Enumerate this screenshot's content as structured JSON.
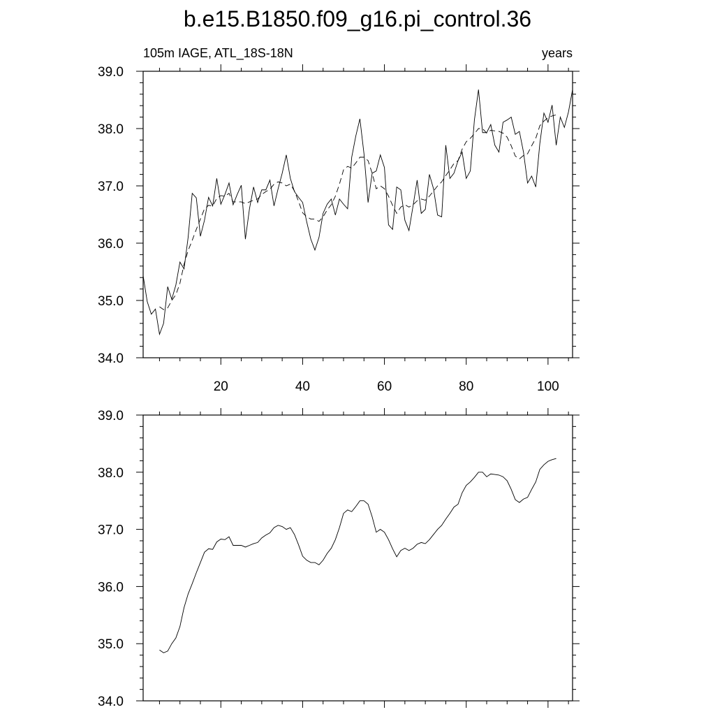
{
  "title": "b.e15.B1850.f09_g16.pi_control.36",
  "chart_data": [
    {
      "type": "line",
      "left_string": "105m IAGE, ATL_18S-18N",
      "right_string": "years",
      "xlim": [
        1,
        106
      ],
      "ylim": [
        34,
        39
      ],
      "xticks": [
        20,
        40,
        60,
        80,
        100
      ],
      "xtick_labels": true,
      "yticks": [
        {
          "value": 34,
          "label": "34.0"
        },
        {
          "value": 35,
          "label": "35.0"
        },
        {
          "value": 36,
          "label": "36.0"
        },
        {
          "value": 37,
          "label": "37.0"
        },
        {
          "value": 38,
          "label": "38.0"
        },
        {
          "value": 39,
          "label": "39.0"
        }
      ],
      "series": [
        {
          "color": "#000000",
          "dash": false,
          "x": [
            1,
            2,
            3,
            4,
            5,
            6,
            7,
            8,
            9,
            10,
            11,
            12,
            13,
            14,
            15,
            16,
            17,
            18,
            19,
            20,
            21,
            22,
            23,
            24,
            25,
            26,
            27,
            28,
            29,
            30,
            31,
            32,
            33,
            34,
            35,
            36,
            37,
            38,
            39,
            40,
            41,
            42,
            43,
            44,
            45,
            46,
            47,
            48,
            49,
            50,
            51,
            52,
            53,
            54,
            55,
            56,
            57,
            58,
            59,
            60,
            61,
            62,
            63,
            64,
            65,
            66,
            67,
            68,
            69,
            70,
            71,
            72,
            73,
            74,
            75,
            76,
            77,
            78,
            79,
            80,
            81,
            82,
            83,
            84,
            85,
            86,
            87,
            88,
            89,
            90,
            91,
            92,
            93,
            94,
            95,
            96,
            97,
            98,
            99,
            100,
            101,
            102,
            103,
            104,
            105,
            106
          ],
          "values": [
            35.43,
            34.98,
            34.76,
            34.85,
            34.41,
            34.6,
            35.24,
            35.02,
            35.27,
            35.67,
            35.55,
            36.1,
            36.87,
            36.79,
            36.12,
            36.4,
            36.8,
            36.65,
            37.13,
            36.68,
            36.85,
            37.05,
            36.67,
            36.85,
            37.01,
            36.07,
            36.6,
            36.98,
            36.71,
            36.93,
            36.93,
            37.1,
            36.65,
            36.95,
            37.22,
            37.54,
            37.13,
            36.9,
            36.8,
            36.71,
            36.37,
            36.07,
            35.88,
            36.1,
            36.52,
            36.68,
            36.77,
            36.49,
            36.77,
            36.68,
            36.6,
            37.5,
            37.87,
            38.17,
            37.56,
            36.71,
            37.22,
            37.26,
            37.54,
            37.32,
            36.32,
            36.24,
            36.98,
            36.93,
            36.4,
            36.22,
            36.65,
            37.1,
            36.52,
            36.59,
            37.2,
            36.95,
            36.49,
            36.46,
            37.71,
            37.13,
            37.22,
            37.44,
            37.59,
            37.13,
            37.26,
            38.15,
            38.68,
            37.93,
            37.93,
            38.07,
            37.71,
            37.59,
            38.11,
            38.15,
            38.2,
            37.9,
            37.95,
            37.59,
            37.05,
            37.17,
            36.98,
            37.74,
            38.27,
            38.11,
            38.41,
            37.71,
            38.2,
            38.02,
            38.29,
            38.68
          ]
        },
        {
          "color": "#000000",
          "dash": true,
          "x": [
            5,
            6,
            7,
            8,
            9,
            10,
            11,
            12,
            13,
            14,
            15,
            16,
            17,
            18,
            19,
            20,
            21,
            22,
            23,
            24,
            25,
            26,
            27,
            28,
            29,
            30,
            31,
            32,
            33,
            34,
            35,
            36,
            37,
            38,
            39,
            40,
            41,
            42,
            43,
            44,
            45,
            46,
            47,
            48,
            49,
            50,
            51,
            52,
            53,
            54,
            55,
            56,
            57,
            58,
            59,
            60,
            61,
            62,
            63,
            64,
            65,
            66,
            67,
            68,
            69,
            70,
            71,
            72,
            73,
            74,
            75,
            76,
            77,
            78,
            79,
            80,
            81,
            82,
            83,
            84,
            85,
            86,
            87,
            88,
            89,
            90,
            91,
            92,
            93,
            94,
            95,
            96,
            97,
            98,
            99,
            100,
            101,
            102
          ],
          "values": [
            34.89,
            34.84,
            34.87,
            35.0,
            35.1,
            35.3,
            35.63,
            35.87,
            36.05,
            36.24,
            36.42,
            36.6,
            36.66,
            36.65,
            36.78,
            36.83,
            36.82,
            36.87,
            36.72,
            36.72,
            36.72,
            36.69,
            36.72,
            36.75,
            36.77,
            36.85,
            36.9,
            36.94,
            37.03,
            37.07,
            37.05,
            37.0,
            37.03,
            36.91,
            36.73,
            36.53,
            36.46,
            36.42,
            36.42,
            36.38,
            36.46,
            36.58,
            36.67,
            36.82,
            37.03,
            37.28,
            37.34,
            37.31,
            37.4,
            37.5,
            37.5,
            37.44,
            37.22,
            36.95,
            37.0,
            36.95,
            36.82,
            36.66,
            36.52,
            36.63,
            36.67,
            36.63,
            36.67,
            36.74,
            36.77,
            36.75,
            36.82,
            36.91,
            37.0,
            37.07,
            37.18,
            37.28,
            37.39,
            37.44,
            37.64,
            37.77,
            37.83,
            37.91,
            38.0,
            38.0,
            37.92,
            37.97,
            37.96,
            37.95,
            37.92,
            37.85,
            37.7,
            37.52,
            37.47,
            37.53,
            37.56,
            37.7,
            37.83,
            38.05,
            38.13,
            38.19,
            38.22,
            38.24
          ]
        }
      ]
    },
    {
      "type": "line",
      "xlim": [
        1,
        106
      ],
      "ylim": [
        34,
        39
      ],
      "xticks": [
        20,
        40,
        60,
        80,
        100
      ],
      "xtick_labels": false,
      "yticks": [
        {
          "value": 34,
          "label": "34.0"
        },
        {
          "value": 35,
          "label": "35.0"
        },
        {
          "value": 36,
          "label": "36.0"
        },
        {
          "value": 37,
          "label": "37.0"
        },
        {
          "value": 38,
          "label": "38.0"
        },
        {
          "value": 39,
          "label": "39.0"
        }
      ],
      "series": [
        {
          "color": "#000000",
          "dash": false,
          "x": [
            5,
            6,
            7,
            8,
            9,
            10,
            11,
            12,
            13,
            14,
            15,
            16,
            17,
            18,
            19,
            20,
            21,
            22,
            23,
            24,
            25,
            26,
            27,
            28,
            29,
            30,
            31,
            32,
            33,
            34,
            35,
            36,
            37,
            38,
            39,
            40,
            41,
            42,
            43,
            44,
            45,
            46,
            47,
            48,
            49,
            50,
            51,
            52,
            53,
            54,
            55,
            56,
            57,
            58,
            59,
            60,
            61,
            62,
            63,
            64,
            65,
            66,
            67,
            68,
            69,
            70,
            71,
            72,
            73,
            74,
            75,
            76,
            77,
            78,
            79,
            80,
            81,
            82,
            83,
            84,
            85,
            86,
            87,
            88,
            89,
            90,
            91,
            92,
            93,
            94,
            95,
            96,
            97,
            98,
            99,
            100,
            101,
            102
          ],
          "values": [
            34.89,
            34.84,
            34.87,
            35.0,
            35.1,
            35.3,
            35.63,
            35.87,
            36.05,
            36.24,
            36.42,
            36.6,
            36.66,
            36.65,
            36.78,
            36.83,
            36.82,
            36.87,
            36.72,
            36.72,
            36.72,
            36.69,
            36.72,
            36.75,
            36.77,
            36.85,
            36.9,
            36.94,
            37.03,
            37.07,
            37.05,
            37.0,
            37.03,
            36.91,
            36.73,
            36.53,
            36.46,
            36.42,
            36.42,
            36.38,
            36.46,
            36.58,
            36.67,
            36.82,
            37.03,
            37.28,
            37.34,
            37.31,
            37.4,
            37.5,
            37.5,
            37.44,
            37.22,
            36.95,
            37.0,
            36.95,
            36.82,
            36.66,
            36.52,
            36.63,
            36.67,
            36.63,
            36.67,
            36.74,
            36.77,
            36.75,
            36.82,
            36.91,
            37.0,
            37.07,
            37.18,
            37.28,
            37.39,
            37.44,
            37.64,
            37.77,
            37.83,
            37.91,
            38.0,
            38.0,
            37.92,
            37.97,
            37.96,
            37.95,
            37.92,
            37.85,
            37.7,
            37.52,
            37.47,
            37.53,
            37.56,
            37.7,
            37.83,
            38.05,
            38.13,
            38.19,
            38.22,
            38.24
          ]
        }
      ]
    }
  ]
}
